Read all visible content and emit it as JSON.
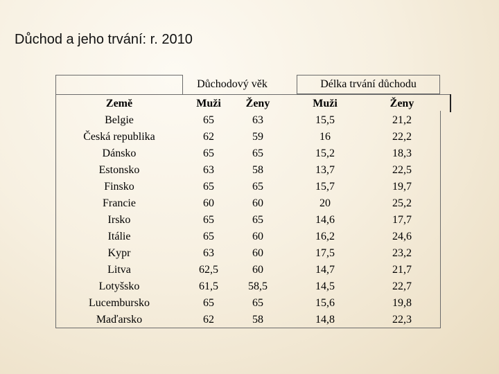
{
  "title": "Důchod a jeho trvání: r. 2010",
  "table": {
    "group_headers": {
      "retirement_age": "Důchodový věk",
      "pension_duration": "Délka trvání důchodu"
    },
    "column_headers": [
      "Země",
      "Muži",
      "Ženy",
      "Muži",
      "Ženy"
    ],
    "rows": [
      [
        "Belgie",
        "65",
        "63",
        "15,5",
        "21,2"
      ],
      [
        "Česká republika",
        "62",
        "59",
        "16",
        "22,2"
      ],
      [
        "Dánsko",
        "65",
        "65",
        "15,2",
        "18,3"
      ],
      [
        "Estonsko",
        "63",
        "58",
        "13,7",
        "22,5"
      ],
      [
        "Finsko",
        "65",
        "65",
        "15,7",
        "19,7"
      ],
      [
        "Francie",
        "60",
        "60",
        "20",
        "25,2"
      ],
      [
        "Irsko",
        "65",
        "65",
        "14,6",
        "17,7"
      ],
      [
        "Itálie",
        "65",
        "60",
        "16,2",
        "24,6"
      ],
      [
        "Kypr",
        "63",
        "60",
        "17,5",
        "23,2"
      ],
      [
        "Litva",
        "62,5",
        "60",
        "14,7",
        "21,7"
      ],
      [
        "Lotyšsko",
        "61,5",
        "58,5",
        "14,5",
        "22,7"
      ],
      [
        "Lucembursko",
        "65",
        "65",
        "15,6",
        "19,8"
      ],
      [
        "Maďarsko",
        "62",
        "58",
        "14,8",
        "22,3"
      ]
    ]
  }
}
